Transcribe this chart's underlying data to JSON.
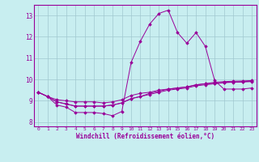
{
  "xlabel": "Windchill (Refroidissement éolien,°C)",
  "bg_color": "#c8eef0",
  "grid_color": "#a0c8d0",
  "line_color": "#990099",
  "xlim": [
    -0.5,
    23.5
  ],
  "ylim": [
    7.8,
    13.5
  ],
  "yticks": [
    8,
    9,
    10,
    11,
    12,
    13
  ],
  "xticks": [
    0,
    1,
    2,
    3,
    4,
    5,
    6,
    7,
    8,
    9,
    10,
    11,
    12,
    13,
    14,
    15,
    16,
    17,
    18,
    19,
    20,
    21,
    22,
    23
  ],
  "series": [
    [
      9.4,
      9.2,
      8.8,
      8.7,
      8.45,
      8.45,
      8.45,
      8.4,
      8.3,
      8.5,
      10.8,
      11.8,
      12.6,
      13.1,
      13.25,
      12.2,
      11.7,
      12.2,
      11.55,
      9.95,
      9.55,
      9.55,
      9.55,
      9.6
    ],
    [
      9.4,
      9.2,
      9.05,
      9.0,
      8.95,
      8.95,
      8.95,
      8.9,
      8.95,
      9.05,
      9.25,
      9.35,
      9.4,
      9.5,
      9.55,
      9.6,
      9.65,
      9.75,
      9.8,
      9.87,
      9.9,
      9.92,
      9.93,
      9.95
    ],
    [
      9.4,
      9.2,
      8.95,
      8.85,
      8.75,
      8.75,
      8.75,
      8.75,
      8.8,
      8.9,
      9.1,
      9.2,
      9.3,
      9.4,
      9.5,
      9.55,
      9.6,
      9.7,
      9.75,
      9.8,
      9.85,
      9.87,
      9.88,
      9.9
    ],
    [
      9.4,
      9.2,
      8.95,
      8.85,
      8.75,
      8.75,
      8.75,
      8.75,
      8.8,
      8.9,
      9.1,
      9.2,
      9.35,
      9.45,
      9.55,
      9.6,
      9.65,
      9.75,
      9.8,
      9.82,
      9.86,
      9.88,
      9.9,
      9.92
    ]
  ]
}
